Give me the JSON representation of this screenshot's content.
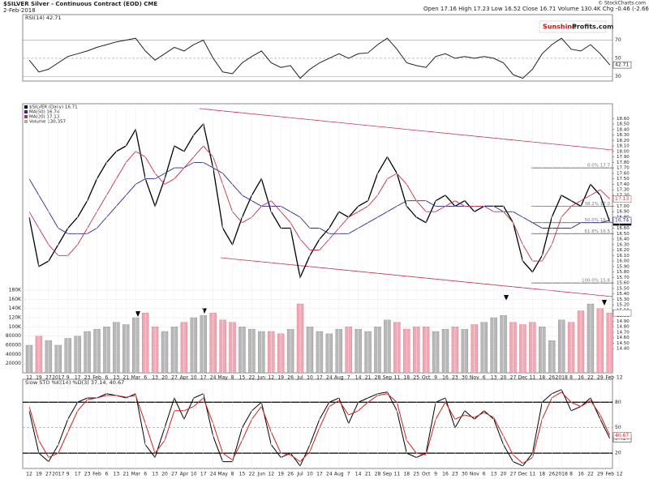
{
  "header": {
    "title": "$SILVER Silver - Continuous Contract (EOD) CME",
    "date": "2-Feb-2018",
    "quote": "Open 17.16 High 17.23 Low 16.52 Close 16.71 Volume 130.4K Chg -0.46 (-2.66%)",
    "copyright": "© StockCharts.com",
    "logo_a": "Sunshine",
    "logo_b": "Profits.com"
  },
  "chart_data": [
    {
      "type": "line",
      "title": "RSI(14) 42.71",
      "ylim": [
        25,
        98
      ],
      "yticks": [
        30,
        50,
        70
      ],
      "series": [
        {
          "name": "RSI(14)",
          "color": "#222222",
          "values": [
            48,
            35,
            38,
            45,
            52,
            55,
            58,
            62,
            65,
            68,
            70,
            72,
            58,
            48,
            55,
            62,
            58,
            65,
            70,
            50,
            35,
            33,
            45,
            52,
            58,
            45,
            40,
            42,
            28,
            38,
            45,
            50,
            55,
            50,
            55,
            56,
            65,
            72,
            60,
            45,
            42,
            40,
            52,
            55,
            50,
            52,
            50,
            52,
            50,
            45,
            32,
            28,
            38,
            55,
            65,
            72,
            60,
            58,
            65,
            55,
            42.71,
            null
          ]
        }
      ]
    },
    {
      "type": "candle-line",
      "categories": [
        "12",
        "19",
        "27",
        "2017",
        "9",
        "17",
        "23",
        "Feb",
        "6",
        "13",
        "21",
        "Mar",
        "6",
        "13",
        "20",
        "27",
        "Apr",
        "10",
        "17",
        "24",
        "May",
        "8",
        "15",
        "22",
        "Jun",
        "12",
        "19",
        "26",
        "Jul",
        "10",
        "17",
        "24",
        "Aug",
        "7",
        "14",
        "21",
        "28",
        "Sep",
        "11",
        "18",
        "25",
        "Oct",
        "9",
        "16",
        "23",
        "30",
        "Nov",
        "6",
        "13",
        "20",
        "27",
        "Dec",
        "11",
        "18",
        "26",
        "2018",
        "8",
        "16",
        "22",
        "29",
        "Feb",
        "12"
      ],
      "ylim": [
        13.96,
        18.87
      ],
      "yticks": [
        {
          "value": 14.4,
          "label": "14.40"
        },
        {
          "value": 14.5,
          "label": "14.50"
        },
        {
          "value": 14.6,
          "label": "14.60"
        },
        {
          "value": 14.7,
          "label": "14.70"
        },
        {
          "value": 14.8,
          "label": "14.80"
        },
        {
          "value": 14.9,
          "label": "14.90"
        },
        {
          "value": 15,
          "label": "15.00"
        },
        {
          "value": 15.1,
          "label": "15.10"
        },
        {
          "value": 15.2,
          "label": "15.20"
        },
        {
          "value": 15.3,
          "label": "15.30"
        },
        {
          "value": 15.4,
          "label": "15.40"
        },
        {
          "value": 15.5,
          "label": "15.50"
        },
        {
          "value": 15.6,
          "label": "15.60"
        },
        {
          "value": 15.7,
          "label": "15.70"
        },
        {
          "value": 15.8,
          "label": "15.80"
        },
        {
          "value": 15.9,
          "label": "15.90"
        },
        {
          "value": 16,
          "label": "16.00"
        },
        {
          "value": 16.1,
          "label": "16.10"
        },
        {
          "value": 16.2,
          "label": "16.20"
        },
        {
          "value": 16.3,
          "label": "16.30"
        },
        {
          "value": 16.4,
          "label": "16.40"
        },
        {
          "value": 16.5,
          "label": "16.50"
        },
        {
          "value": 16.6,
          "label": "16.60"
        },
        {
          "value": 16.7,
          "label": "16.70"
        },
        {
          "value": 16.8,
          "label": "16.80"
        },
        {
          "value": 16.9,
          "label": "16.90"
        },
        {
          "value": 17,
          "label": "17.00"
        },
        {
          "value": 17.1,
          "label": "17.10"
        },
        {
          "value": 17.2,
          "label": "17.20"
        },
        {
          "value": 17.3,
          "label": "17.30"
        },
        {
          "value": 17.4,
          "label": "17.40"
        },
        {
          "value": 17.5,
          "label": "17.50"
        },
        {
          "value": 17.6,
          "label": "17.60"
        },
        {
          "value": 17.7,
          "label": "17.70"
        },
        {
          "value": 17.8,
          "label": "17.80"
        },
        {
          "value": 17.9,
          "label": "17.90"
        },
        {
          "value": 18,
          "label": "18.00"
        },
        {
          "value": 18.1,
          "label": "18.10"
        },
        {
          "value": 18.2,
          "label": "18.20"
        },
        {
          "value": 18.3,
          "label": "18.30"
        },
        {
          "value": 18.4,
          "label": "18.40"
        },
        {
          "value": 18.5,
          "label": "18.50"
        },
        {
          "value": 18.6,
          "label": "18.60"
        }
      ],
      "y2lim": [
        0,
        180000
      ],
      "y2ticks": [
        20000,
        40000,
        60000,
        80000,
        {
          "value": 100000,
          "label": "100K"
        },
        {
          "value": 120000,
          "label": "120K"
        },
        {
          "value": 140000,
          "label": "140K"
        },
        {
          "value": 160000,
          "label": "160K"
        },
        {
          "value": 180000,
          "label": "180K"
        }
      ],
      "series": [
        {
          "name": "$SILVER (Daily) 16.71",
          "color": "#000000",
          "values": [
            16.8,
            15.9,
            16.0,
            16.3,
            16.6,
            16.8,
            17.1,
            17.5,
            17.8,
            18.0,
            18.1,
            18.4,
            17.5,
            17.0,
            17.5,
            18.1,
            18.0,
            18.3,
            18.5,
            17.7,
            16.6,
            16.3,
            16.8,
            17.2,
            17.5,
            16.9,
            16.6,
            16.6,
            15.7,
            16.1,
            16.4,
            16.6,
            16.9,
            16.8,
            17.0,
            17.1,
            17.6,
            17.9,
            17.6,
            17.0,
            16.8,
            16.7,
            17.1,
            17.2,
            17.0,
            17.1,
            16.9,
            17.0,
            17.0,
            17.0,
            16.7,
            16.0,
            15.8,
            16.1,
            16.8,
            17.2,
            17.1,
            17.0,
            17.4,
            17.2,
            16.71,
            null
          ]
        },
        {
          "name": "MA(50) 16.74",
          "color": "#2b2b8c",
          "values": [
            17.5,
            17.2,
            16.9,
            16.6,
            16.5,
            16.5,
            16.5,
            16.6,
            16.8,
            17.0,
            17.2,
            17.4,
            17.5,
            17.5,
            17.6,
            17.7,
            17.7,
            17.8,
            17.8,
            17.7,
            17.6,
            17.4,
            17.2,
            17.1,
            17.0,
            17.0,
            17.0,
            16.9,
            16.8,
            16.6,
            16.6,
            16.5,
            16.5,
            16.5,
            16.6,
            16.7,
            16.8,
            16.9,
            17.0,
            17.1,
            17.1,
            17.1,
            17.0,
            17.0,
            17.0,
            17.0,
            17.0,
            17.0,
            17.0,
            16.9,
            16.9,
            16.8,
            16.7,
            16.6,
            16.6,
            16.6,
            16.6,
            16.7,
            16.7,
            16.7,
            16.74,
            null
          ]
        },
        {
          "name": "MA(20) 17.13",
          "color": "#c0304a",
          "values": [
            16.9,
            16.6,
            16.3,
            16.1,
            16.1,
            16.3,
            16.6,
            16.9,
            17.2,
            17.5,
            17.8,
            18.0,
            17.9,
            17.6,
            17.4,
            17.5,
            17.7,
            17.9,
            18.1,
            17.9,
            17.4,
            16.9,
            16.7,
            16.8,
            17.0,
            17.1,
            16.9,
            16.7,
            16.4,
            16.2,
            16.2,
            16.4,
            16.6,
            16.8,
            16.9,
            17.0,
            17.2,
            17.5,
            17.6,
            17.4,
            17.1,
            16.9,
            16.9,
            17.0,
            17.1,
            17.0,
            17.0,
            17.0,
            16.9,
            16.9,
            16.7,
            16.3,
            16.0,
            16.0,
            16.3,
            16.8,
            17.0,
            17.1,
            17.2,
            17.3,
            17.13,
            null
          ]
        },
        {
          "name": "Volume 130,357",
          "type": "bar",
          "axis": "y2",
          "color": "#aaaaaa",
          "values": [
            60000,
            80000,
            70000,
            60000,
            75000,
            80000,
            90000,
            95000,
            100000,
            110000,
            105000,
            120000,
            130000,
            100000,
            90000,
            100000,
            110000,
            120000,
            125000,
            130000,
            115000,
            110000,
            100000,
            95000,
            90000,
            90000,
            85000,
            95000,
            150000,
            100000,
            90000,
            85000,
            95000,
            100000,
            95000,
            90000,
            100000,
            115000,
            110000,
            95000,
            100000,
            100000,
            90000,
            95000,
            100000,
            95000,
            105000,
            110000,
            120000,
            125000,
            110000,
            105000,
            110000,
            100000,
            70000,
            115000,
            110000,
            135000,
            150000,
            140000,
            130357,
            null
          ]
        }
      ],
      "annotations": [
        {
          "text": "0.0% 17.7",
          "value": 17.7
        },
        {
          "text": "38.2% 17.0",
          "value": 17.0
        },
        {
          "text": "50.0% 16.7",
          "value": 16.7
        },
        {
          "text": "61.8% 16.5",
          "value": 16.5
        },
        {
          "text": "100.0% 15.6",
          "value": 15.6
        }
      ]
    },
    {
      "type": "line",
      "title": "Slow STO %K(14) %D(3) 37.14, 40.67",
      "categories": [
        "12",
        "19",
        "27",
        "2017",
        "9",
        "17",
        "23",
        "Feb",
        "6",
        "13",
        "21",
        "Mar",
        "6",
        "13",
        "20",
        "27",
        "Apr",
        "10",
        "17",
        "24",
        "May",
        "8",
        "15",
        "22",
        "Jun",
        "12",
        "19",
        "26",
        "Jul",
        "10",
        "17",
        "24",
        "Aug",
        "7",
        "14",
        "21",
        "28",
        "Sep",
        "11",
        "18",
        "25",
        "Oct",
        "9",
        "16",
        "23",
        "30",
        "Nov",
        "6",
        "13",
        "20",
        "27",
        "Dec",
        "11",
        "18",
        "26",
        "2018",
        "8",
        "16",
        "22",
        "29",
        "Feb",
        "12"
      ],
      "ylim": [
        2,
        107
      ],
      "yticks": [
        20,
        50,
        80
      ],
      "series": [
        {
          "name": "%K(14)",
          "color": "#000000",
          "values": [
            70,
            20,
            10,
            30,
            60,
            80,
            85,
            85,
            90,
            88,
            85,
            90,
            30,
            15,
            50,
            85,
            60,
            85,
            90,
            40,
            10,
            10,
            50,
            70,
            80,
            30,
            15,
            20,
            5,
            30,
            60,
            80,
            85,
            55,
            80,
            85,
            90,
            92,
            70,
            20,
            15,
            20,
            80,
            85,
            50,
            70,
            60,
            70,
            60,
            30,
            10,
            5,
            20,
            80,
            90,
            95,
            70,
            75,
            85,
            60,
            37.14,
            null
          ]
        },
        {
          "name": "%D(3)",
          "color": "#d02020",
          "values": [
            75,
            35,
            15,
            20,
            45,
            70,
            83,
            85,
            88,
            88,
            86,
            88,
            55,
            20,
            35,
            70,
            70,
            75,
            85,
            55,
            20,
            12,
            35,
            60,
            75,
            45,
            20,
            18,
            10,
            22,
            50,
            75,
            82,
            65,
            70,
            80,
            88,
            90,
            80,
            35,
            20,
            18,
            60,
            80,
            60,
            65,
            62,
            68,
            62,
            40,
            18,
            8,
            15,
            60,
            85,
            92,
            80,
            75,
            82,
            65,
            40.67,
            null
          ]
        }
      ]
    }
  ]
}
